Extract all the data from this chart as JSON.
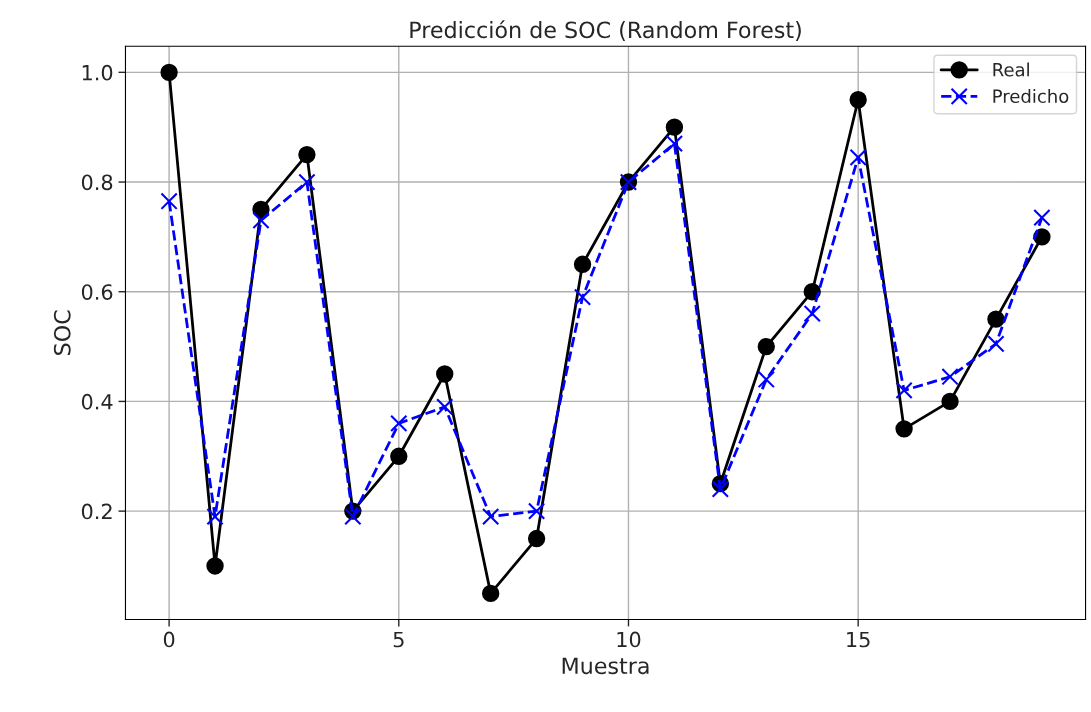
{
  "chart_data": {
    "type": "line",
    "title": "Predicción de SOC (Random Forest)",
    "xlabel": "Muestra",
    "ylabel": "SOC",
    "x": [
      0,
      1,
      2,
      3,
      4,
      5,
      6,
      7,
      8,
      9,
      10,
      11,
      12,
      13,
      14,
      15,
      16,
      17,
      18,
      19
    ],
    "series": [
      {
        "name": "Real",
        "color": "#000000",
        "marker": "circle",
        "line_style": "solid",
        "values": [
          1.0,
          0.1,
          0.75,
          0.85,
          0.2,
          0.3,
          0.45,
          0.05,
          0.15,
          0.65,
          0.8,
          0.9,
          0.25,
          0.5,
          0.6,
          0.95,
          0.35,
          0.4,
          0.55,
          0.7
        ]
      },
      {
        "name": "Predicho",
        "color": "#0000ff",
        "marker": "cross",
        "line_style": "dashed",
        "values": [
          0.765,
          0.19,
          0.73,
          0.8,
          0.19,
          0.36,
          0.39,
          0.19,
          0.2,
          0.59,
          0.8,
          0.87,
          0.24,
          0.44,
          0.56,
          0.845,
          0.42,
          0.445,
          0.505,
          0.735
        ]
      }
    ],
    "xlim": [
      -0.95,
      19.95
    ],
    "xticks": [
      0,
      5,
      10,
      15
    ],
    "ylim": [
      0.0025,
      1.0475
    ],
    "yticks": [
      0.2,
      0.4,
      0.6,
      0.8,
      {
        "value": 1,
        "label": "1.0"
      }
    ],
    "grid": true,
    "legend": "top right"
  }
}
